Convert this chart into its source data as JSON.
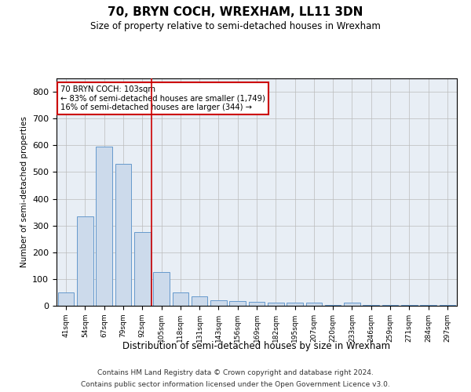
{
  "title": "70, BRYN COCH, WREXHAM, LL11 3DN",
  "subtitle": "Size of property relative to semi-detached houses in Wrexham",
  "xlabel": "Distribution of semi-detached houses by size in Wrexham",
  "ylabel": "Number of semi-detached properties",
  "categories": [
    "41sqm",
    "54sqm",
    "67sqm",
    "79sqm",
    "92sqm",
    "105sqm",
    "118sqm",
    "131sqm",
    "143sqm",
    "156sqm",
    "169sqm",
    "182sqm",
    "195sqm",
    "207sqm",
    "220sqm",
    "233sqm",
    "246sqm",
    "259sqm",
    "271sqm",
    "284sqm",
    "297sqm"
  ],
  "values": [
    50,
    335,
    595,
    530,
    275,
    125,
    50,
    35,
    20,
    17,
    14,
    12,
    12,
    12,
    2,
    12,
    2,
    2,
    2,
    2,
    2
  ],
  "bar_color": "#ccdaeb",
  "bar_edge_color": "#6699cc",
  "annotation_line1": "70 BRYN COCH: 103sqm",
  "annotation_line2": "← 83% of semi-detached houses are smaller (1,749)",
  "annotation_line3": "16% of semi-detached houses are larger (344) →",
  "annotation_box_color": "#ffffff",
  "annotation_box_edge": "#cc0000",
  "vline_color": "#cc0000",
  "vline_x": 4.5,
  "ylim": [
    0,
    850
  ],
  "yticks": [
    0,
    100,
    200,
    300,
    400,
    500,
    600,
    700,
    800
  ],
  "background_color": "#e8eef5",
  "footer_line1": "Contains HM Land Registry data © Crown copyright and database right 2024.",
  "footer_line2": "Contains public sector information licensed under the Open Government Licence v3.0."
}
